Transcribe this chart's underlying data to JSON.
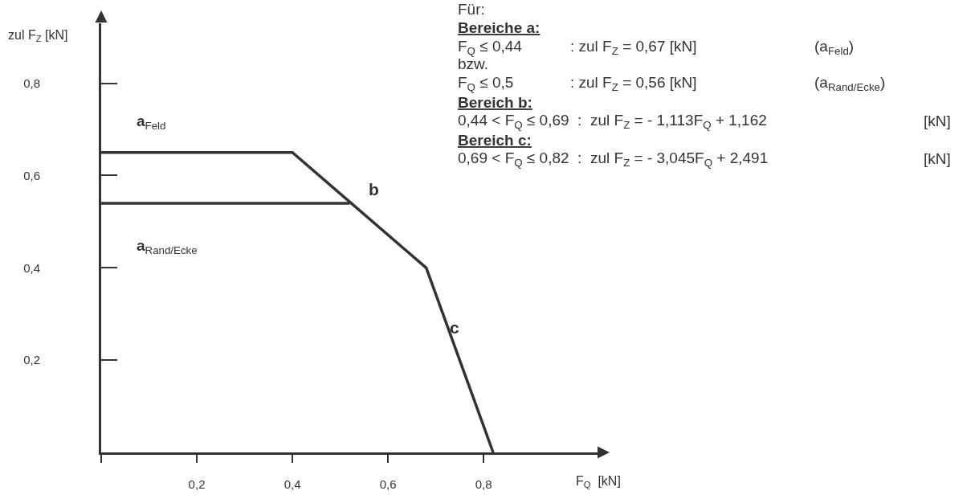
{
  "chart_data": {
    "type": "line",
    "xlabel": "F$_{Q}$  [kN]",
    "ylabel": "zul F$_{Z}$ [kN]",
    "series": [
      {
        "name": "a$_{Feld}$",
        "color": "#333333",
        "x": [
          0,
          0.4,
          0.68,
          0.82
        ],
        "values": [
          0.65,
          0.65,
          0.4,
          0
        ]
      },
      {
        "name": "a$_{Rand/Ecke}$",
        "color": "#333333",
        "x": [
          0,
          0.52
        ],
        "values": [
          0.54,
          0.54
        ]
      }
    ],
    "xlim": [
      0,
      1.04
    ],
    "ylim": [
      0,
      0.93
    ],
    "xticks": [
      {
        "value": 0,
        "label": null
      },
      {
        "value": 0.2,
        "label": "0,2"
      },
      {
        "value": 0.4,
        "label": "0,4"
      },
      {
        "value": 0.6,
        "label": "0,6"
      },
      {
        "value": 0.8,
        "label": "0,8"
      }
    ],
    "yticks": [
      {
        "value": 0.2,
        "label": "0,2"
      },
      {
        "value": 0.4,
        "label": "0,4"
      },
      {
        "value": 0.6,
        "label": "0,6"
      },
      {
        "value": 0.8,
        "label": "0,8"
      }
    ],
    "legend": false,
    "marker": "none",
    "line_style": "solid",
    "annotations": [
      "b",
      "c",
      "Für:",
      "Bereiche a:",
      "F$_{Q}$ ≤ 0,44",
      ": zul F$_{Z}$ = 0,67 [kN]",
      "(a$_{Feld}$)",
      "bzw.",
      "F$_{Q}$ ≤ 0,5",
      ": zul F$_{Z}$ = 0,56 [kN]",
      "(a$_{Rand/Ecke}$)",
      "Bereich b:",
      "0,44 < F$_{Q}$ ≤ 0,69  :  zul F$_{Z}$ = - 1,113F$_{Q}$ + 1,162",
      "[kN]",
      "Bereich c:",
      "0,69 < F$_{Q}$ ≤ 0,82  :  zul F$_{Z}$ = - 3,045F$_{Q}$ + 2,491",
      "[kN]"
    ]
  }
}
